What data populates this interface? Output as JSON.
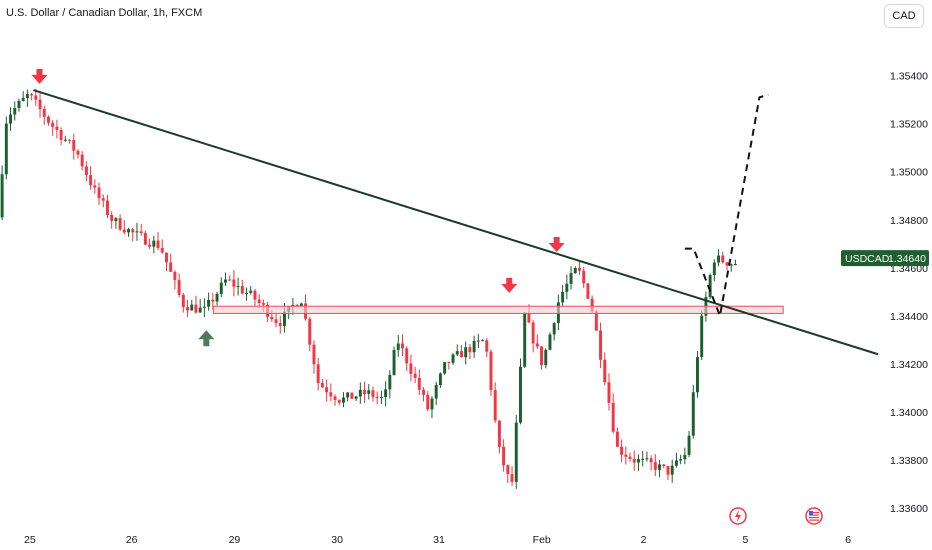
{
  "header": {
    "title": "U.S. Dollar / Canadian Dollar, 1h, FXCM",
    "currency_button": "CAD"
  },
  "price_tag": {
    "symbol": "USDCAD",
    "value": "1.34640",
    "color": "#1e5f30"
  },
  "colors": {
    "up": "#1e5f30",
    "down": "#f23645",
    "trendline": "#1c3b2a",
    "zone_fill": "#f9c9cd",
    "zone_border": "#e8505d",
    "arrow_down": "#f23645",
    "arrow_up": "#4f7a5e"
  },
  "events": [
    "lightning-icon",
    "us-flag-icon"
  ],
  "chart_data": {
    "type": "candlestick",
    "title": "U.S. Dollar / Canadian Dollar, 1h, FXCM",
    "y_ticks": [
      "1.35400",
      "1.35200",
      "1.35000",
      "1.34800",
      "1.34600",
      "1.34400",
      "1.34200",
      "1.34000",
      "1.33800",
      "1.33600"
    ],
    "x_ticks": [
      "25",
      "26",
      "29",
      "30",
      "31",
      "Feb",
      "2",
      "5",
      "6"
    ],
    "ylim": [
      1.3355,
      1.3559
    ],
    "current_price": 1.3464,
    "resistance_zone": [
      1.3441,
      1.3444
    ],
    "trendline": [
      [
        0,
        1.3534
      ],
      [
        1.0,
        1.3424
      ]
    ],
    "projection_path": [
      [
        0.78,
        1.3468
      ],
      [
        0.79,
        1.3468
      ],
      [
        0.82,
        1.344
      ],
      [
        0.865,
        1.3531
      ],
      [
        0.875,
        1.3532
      ]
    ],
    "signals": [
      {
        "type": "down",
        "x": 0.045,
        "price": 1.3537
      },
      {
        "type": "up",
        "x": 0.235,
        "price": 1.3434
      },
      {
        "type": "down",
        "x": 0.58,
        "price": 1.345
      },
      {
        "type": "down",
        "x": 0.634,
        "price": 1.3467
      }
    ],
    "candle_count": 175
  }
}
